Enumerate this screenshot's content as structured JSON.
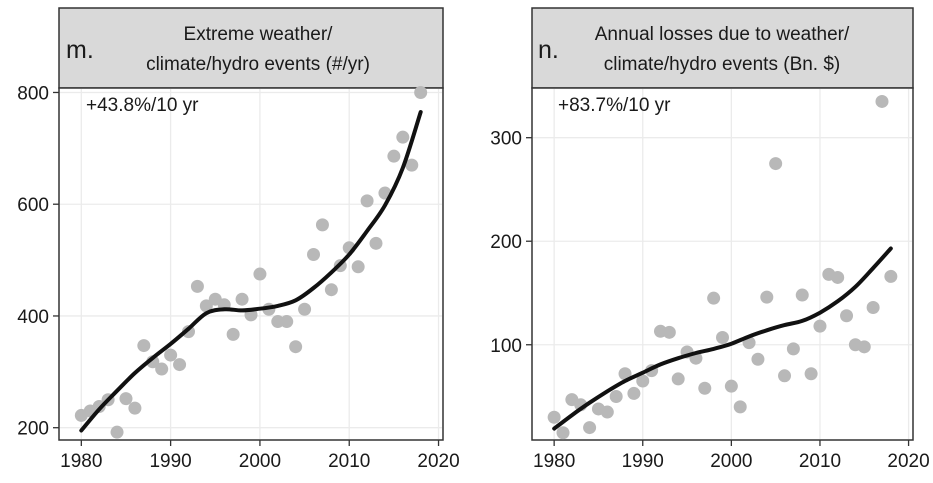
{
  "chart_data": [
    {
      "type": "scatter",
      "panel_letter": "m.",
      "title_lines": [
        "Extreme weather/",
        "climate/hydro events (#/yr)"
      ],
      "annotation": "+43.8%/10 yr",
      "xlabel": "",
      "ylabel": "",
      "xlim": [
        1977.5,
        2020.5
      ],
      "ylim": [
        178,
        808
      ],
      "xticks": [
        1980,
        1990,
        2000,
        2010,
        2020
      ],
      "yticks": [
        200,
        400,
        600,
        800
      ],
      "xtick_labels": [
        "1980",
        "1990",
        "2000",
        "2010",
        "2020"
      ],
      "ytick_labels": [
        "200",
        "400",
        "600",
        "800"
      ],
      "grid": true,
      "point_color": "#b8b8b8",
      "line_color": "#111111",
      "points": [
        [
          1980,
          222
        ],
        [
          1981,
          230
        ],
        [
          1982,
          238
        ],
        [
          1983,
          250
        ],
        [
          1984,
          192
        ],
        [
          1985,
          252
        ],
        [
          1986,
          235
        ],
        [
          1987,
          347
        ],
        [
          1988,
          318
        ],
        [
          1989,
          305
        ],
        [
          1990,
          330
        ],
        [
          1991,
          313
        ],
        [
          1992,
          372
        ],
        [
          1993,
          453
        ],
        [
          1994,
          418
        ],
        [
          1995,
          430
        ],
        [
          1996,
          420
        ],
        [
          1997,
          367
        ],
        [
          1998,
          430
        ],
        [
          1999,
          402
        ],
        [
          2000,
          475
        ],
        [
          2001,
          412
        ],
        [
          2002,
          390
        ],
        [
          2003,
          390
        ],
        [
          2004,
          345
        ],
        [
          2005,
          412
        ],
        [
          2006,
          510
        ],
        [
          2007,
          563
        ],
        [
          2008,
          447
        ],
        [
          2009,
          490
        ],
        [
          2010,
          522
        ],
        [
          2011,
          488
        ],
        [
          2012,
          606
        ],
        [
          2013,
          530
        ],
        [
          2014,
          620
        ],
        [
          2015,
          686
        ],
        [
          2016,
          720
        ],
        [
          2017,
          670
        ],
        [
          2018,
          800
        ]
      ],
      "fit": [
        [
          1980,
          195
        ],
        [
          1982,
          233
        ],
        [
          1984,
          266
        ],
        [
          1986,
          298
        ],
        [
          1988,
          325
        ],
        [
          1990,
          350
        ],
        [
          1992,
          377
        ],
        [
          1994,
          405
        ],
        [
          1996,
          412
        ],
        [
          1998,
          410
        ],
        [
          2000,
          413
        ],
        [
          2002,
          418
        ],
        [
          2004,
          428
        ],
        [
          2006,
          450
        ],
        [
          2008,
          478
        ],
        [
          2010,
          510
        ],
        [
          2012,
          552
        ],
        [
          2014,
          598
        ],
        [
          2016,
          665
        ],
        [
          2018,
          765
        ]
      ]
    },
    {
      "type": "scatter",
      "panel_letter": "n.",
      "title_lines": [
        "Annual losses due to weather/",
        "climate/hydro events (Bn. $)"
      ],
      "annotation": "+83.7%/10 yr",
      "xlabel": "",
      "ylabel": "",
      "xlim": [
        1977.5,
        2020.5
      ],
      "ylim": [
        8,
        348
      ],
      "xticks": [
        1980,
        1990,
        2000,
        2010,
        2020
      ],
      "yticks": [
        100,
        200,
        300
      ],
      "xtick_labels": [
        "1980",
        "1990",
        "2000",
        "2010",
        "2020"
      ],
      "ytick_labels": [
        "100",
        "200",
        "300"
      ],
      "grid": true,
      "point_color": "#b8b8b8",
      "line_color": "#111111",
      "points": [
        [
          1980,
          30
        ],
        [
          1981,
          15
        ],
        [
          1982,
          47
        ],
        [
          1983,
          42
        ],
        [
          1984,
          20
        ],
        [
          1985,
          38
        ],
        [
          1986,
          35
        ],
        [
          1987,
          50
        ],
        [
          1988,
          72
        ],
        [
          1989,
          53
        ],
        [
          1990,
          65
        ],
        [
          1991,
          75
        ],
        [
          1992,
          113
        ],
        [
          1993,
          112
        ],
        [
          1994,
          67
        ],
        [
          1995,
          93
        ],
        [
          1996,
          87
        ],
        [
          1997,
          58
        ],
        [
          1998,
          145
        ],
        [
          1999,
          107
        ],
        [
          2000,
          60
        ],
        [
          2001,
          40
        ],
        [
          2002,
          102
        ],
        [
          2003,
          86
        ],
        [
          2004,
          146
        ],
        [
          2005,
          275
        ],
        [
          2006,
          70
        ],
        [
          2007,
          96
        ],
        [
          2008,
          148
        ],
        [
          2009,
          72
        ],
        [
          2010,
          118
        ],
        [
          2011,
          168
        ],
        [
          2012,
          165
        ],
        [
          2013,
          128
        ],
        [
          2014,
          100
        ],
        [
          2015,
          98
        ],
        [
          2016,
          136
        ],
        [
          2017,
          335
        ],
        [
          2018,
          166
        ]
      ],
      "fit": [
        [
          1980,
          19
        ],
        [
          1982,
          32
        ],
        [
          1984,
          44
        ],
        [
          1986,
          55
        ],
        [
          1988,
          65
        ],
        [
          1990,
          73
        ],
        [
          1992,
          81
        ],
        [
          1994,
          87
        ],
        [
          1996,
          92
        ],
        [
          1998,
          96
        ],
        [
          2000,
          101
        ],
        [
          2002,
          108
        ],
        [
          2004,
          114
        ],
        [
          2006,
          119
        ],
        [
          2008,
          123
        ],
        [
          2010,
          131
        ],
        [
          2012,
          142
        ],
        [
          2014,
          156
        ],
        [
          2016,
          174
        ],
        [
          2018,
          193
        ]
      ]
    }
  ]
}
